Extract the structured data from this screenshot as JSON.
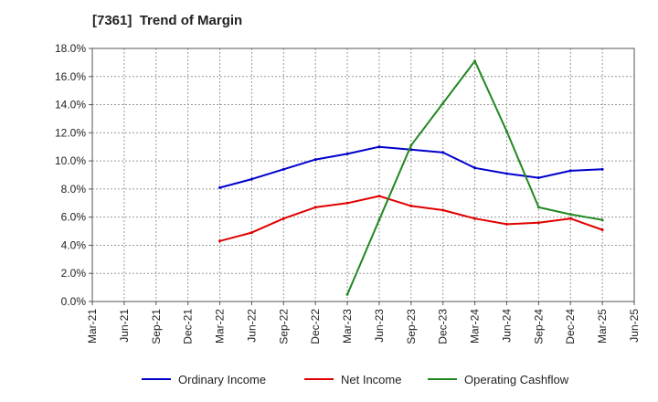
{
  "title": "[7361]  Trend of Margin",
  "chart_data": {
    "type": "line",
    "title": "[7361]  Trend of Margin",
    "xlabel": "",
    "ylabel": "",
    "ylim": [
      0,
      18
    ],
    "y_ticks": [
      "0.0%",
      "2.0%",
      "4.0%",
      "6.0%",
      "8.0%",
      "10.0%",
      "12.0%",
      "14.0%",
      "16.0%",
      "18.0%"
    ],
    "categories": [
      "Mar-21",
      "Jun-21",
      "Sep-21",
      "Dec-21",
      "Mar-22",
      "Jun-22",
      "Sep-22",
      "Dec-22",
      "Mar-23",
      "Jun-23",
      "Sep-23",
      "Dec-23",
      "Mar-24",
      "Jun-24",
      "Sep-24",
      "Dec-24",
      "Mar-25",
      "Jun-25"
    ],
    "grid": true,
    "legend_position": "bottom",
    "series": [
      {
        "name": "Ordinary Income",
        "color": "#0000cc",
        "values": [
          null,
          null,
          null,
          null,
          8.1,
          8.7,
          9.4,
          10.1,
          10.5,
          11.0,
          10.8,
          10.6,
          9.5,
          9.1,
          8.8,
          9.3,
          9.4,
          null
        ]
      },
      {
        "name": "Net Income",
        "color": "#e00000",
        "values": [
          null,
          null,
          null,
          null,
          4.3,
          4.9,
          5.9,
          6.7,
          7.0,
          7.5,
          6.8,
          6.5,
          5.9,
          5.5,
          5.6,
          5.9,
          5.1,
          null
        ]
      },
      {
        "name": "Operating Cashflow",
        "color": "#228822",
        "values": [
          null,
          null,
          null,
          null,
          null,
          null,
          null,
          null,
          0.5,
          5.8,
          11.1,
          14.1,
          17.1,
          12.1,
          6.7,
          6.2,
          5.8,
          null
        ]
      }
    ]
  }
}
